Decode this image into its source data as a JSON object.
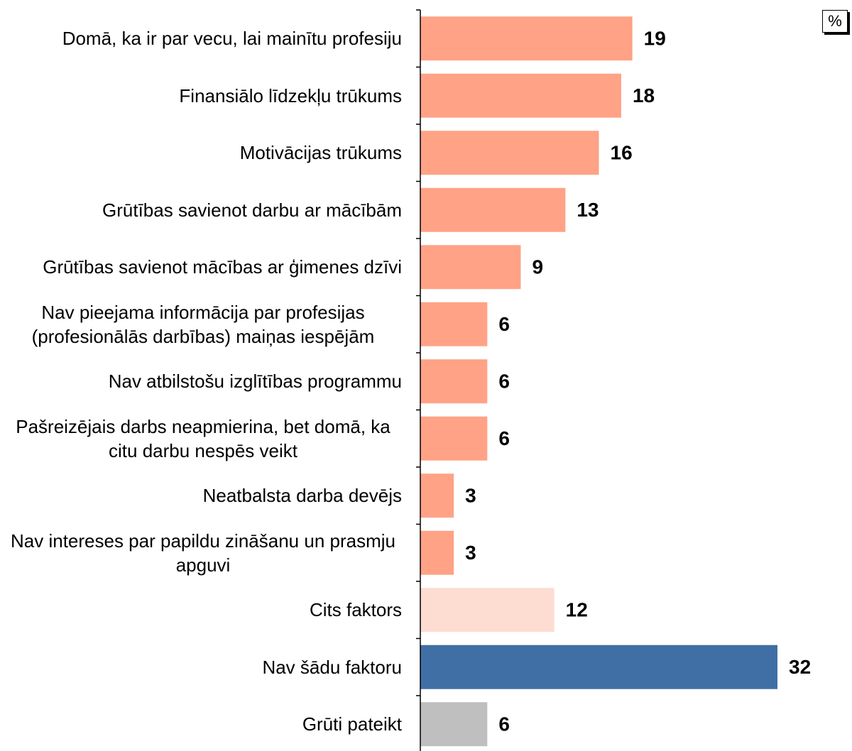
{
  "chart_data": {
    "type": "barh",
    "unit": "%",
    "categories": [
      "Domā, ka ir par vecu, lai mainītu profesiju",
      "Finansiālo līdzekļu trūkums",
      "Motivācijas trūkums",
      "Grūtības savienot darbu ar mācībām",
      "Grūtības savienot mācības ar ģimenes dzīvi",
      "Nav pieejama informācija par profesijas (profesionālās darbības) maiņas iespējām",
      "Nav atbilstošu izglītības programmu",
      "Pašreizējais darbs neapmierina, bet domā, ka citu darbu nespēs veikt",
      "Neatbalsta darba devējs",
      "Nav intereses par papildu zināšanu un prasmju apguvi",
      "Cits faktors",
      "Nav šādu faktoru",
      "Grūti pateikt"
    ],
    "values": [
      19,
      18,
      16,
      13,
      9,
      6,
      6,
      6,
      3,
      3,
      12,
      32,
      6
    ],
    "colors": [
      "#ffa286",
      "#ffa286",
      "#ffa286",
      "#ffa286",
      "#ffa286",
      "#ffa286",
      "#ffa286",
      "#ffa286",
      "#ffa286",
      "#ffa286",
      "#fddcd2",
      "#3f6fa5",
      "#bfbfbf"
    ],
    "xlim": [
      0,
      32
    ]
  }
}
